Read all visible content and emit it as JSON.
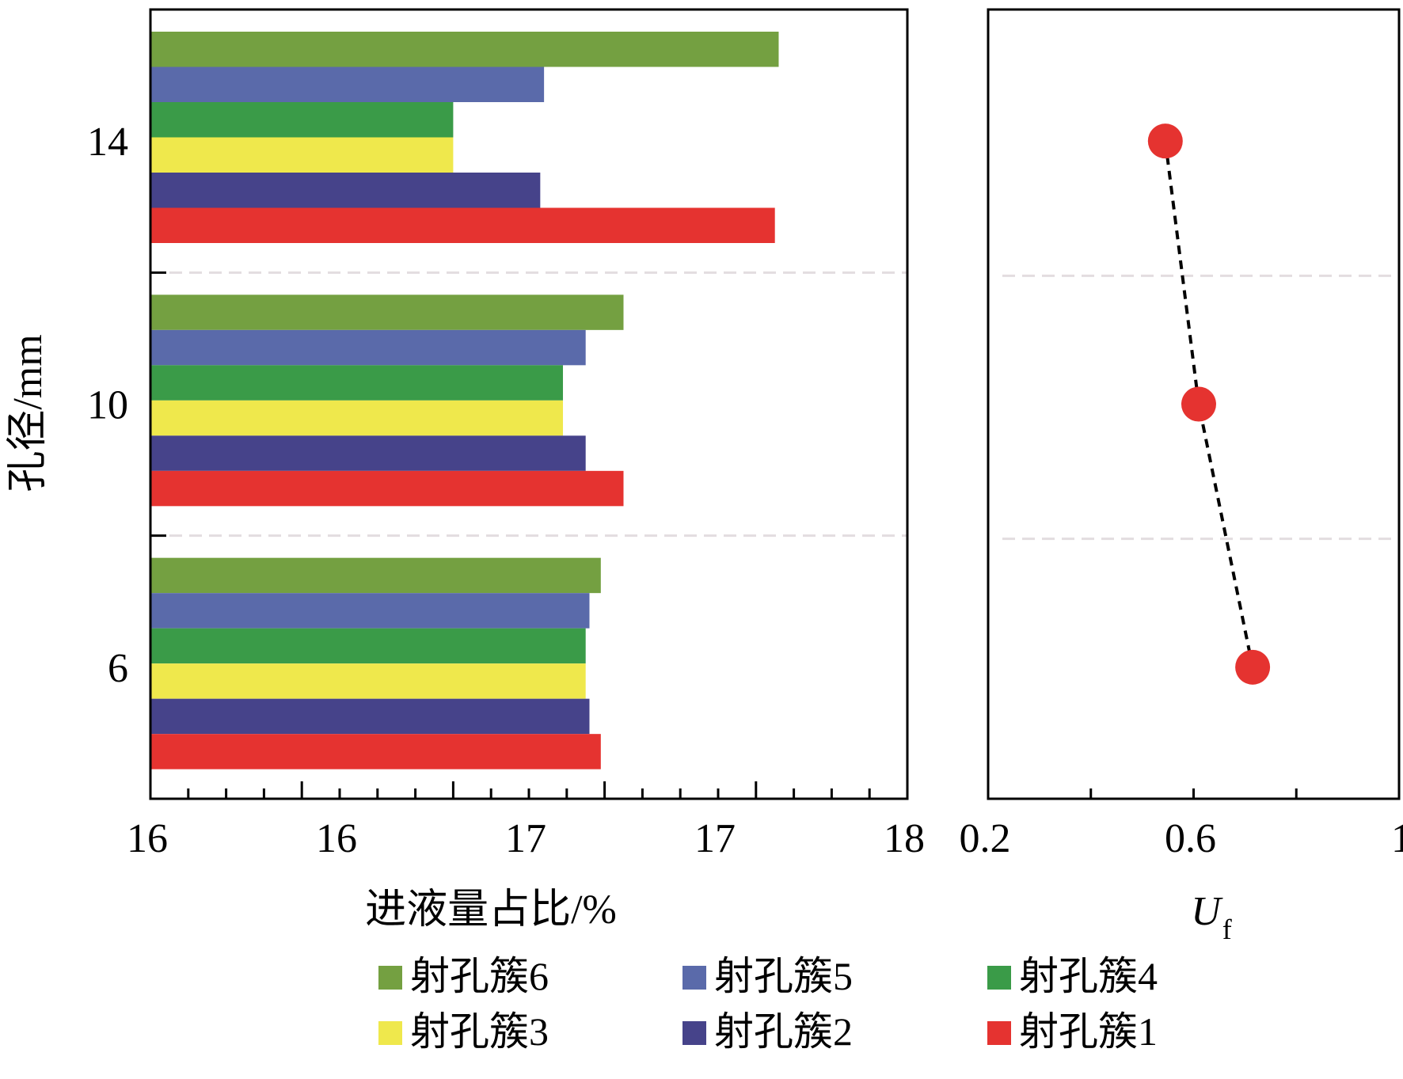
{
  "chart_data": [
    {
      "type": "bar",
      "orientation": "horizontal",
      "xlabel": "进液量占比/%",
      "ylabel": "孔径/mm",
      "categories": [
        "6",
        "10",
        "14"
      ],
      "x_tick_labels": [
        "16",
        "16",
        "17",
        "17",
        "18"
      ],
      "xlim": [
        16,
        18
      ],
      "series": [
        {
          "name": "射孔簇1",
          "color": "#e53330",
          "values": [
            17.19,
            17.25,
            17.65
          ]
        },
        {
          "name": "射孔簇2",
          "color": "#46438a",
          "values": [
            17.16,
            17.15,
            17.03
          ]
        },
        {
          "name": "射孔簇3",
          "color": "#efe84c",
          "values": [
            17.15,
            17.09,
            16.8
          ]
        },
        {
          "name": "射孔簇4",
          "color": "#3a9b48",
          "values": [
            17.15,
            17.09,
            16.8
          ]
        },
        {
          "name": "射孔簇5",
          "color": "#5a6aaa",
          "values": [
            17.16,
            17.15,
            17.04
          ]
        },
        {
          "name": "射孔簇6",
          "color": "#74a041",
          "values": [
            17.19,
            17.25,
            17.66
          ]
        }
      ],
      "grid": "dashed separators between groups",
      "legend": "bottom, 2 rows x 3 columns"
    },
    {
      "type": "line",
      "marker": "circle",
      "line_style": "dashed",
      "xlabel": "U",
      "xlabel_sub": "f",
      "x_tick_labels": [
        "0.2",
        "0.6",
        "1"
      ],
      "xlim": [
        0.2,
        1.0
      ],
      "series": [
        {
          "color": "#e53330",
          "points": [
            {
              "y": "14",
              "x": 0.545
            },
            {
              "y": "10",
              "x": 0.61
            },
            {
              "y": "6",
              "x": 0.715
            }
          ]
        }
      ]
    }
  ]
}
